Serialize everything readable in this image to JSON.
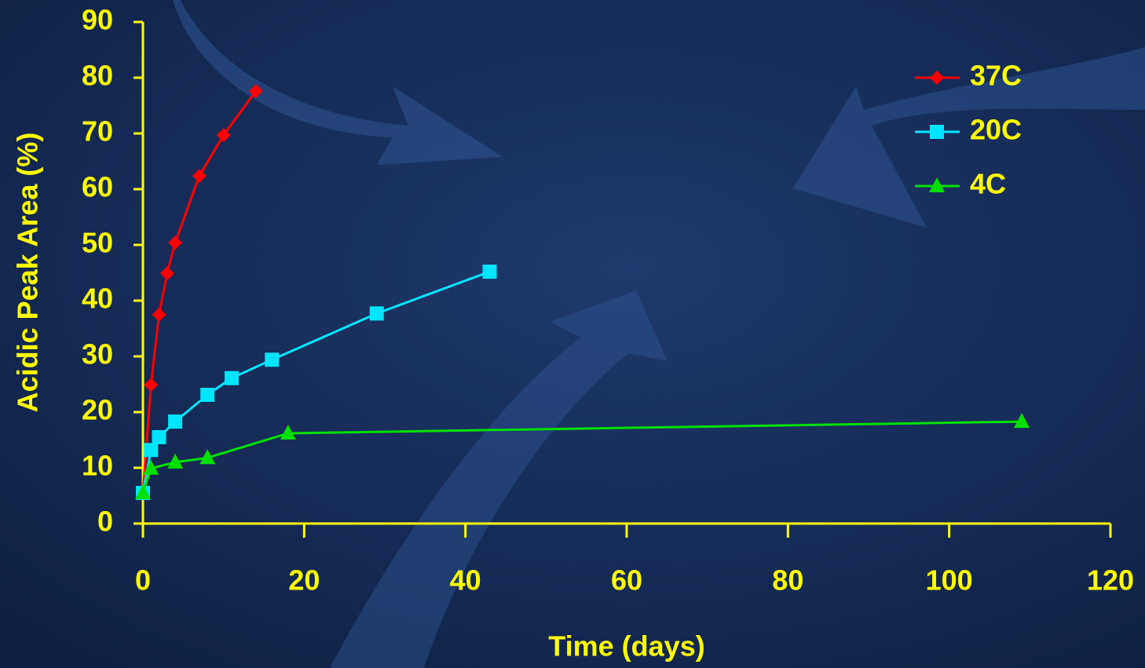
{
  "chart_data": {
    "type": "line",
    "x_label": "Time (days)",
    "y_label": "Acidic Peak Area (%)",
    "xlim": [
      0,
      120
    ],
    "xticks": [
      0,
      20,
      40,
      60,
      80,
      100,
      120
    ],
    "ylim": [
      0,
      90
    ],
    "yticks": [
      0,
      10,
      20,
      30,
      40,
      50,
      60,
      70,
      80,
      90
    ],
    "grid": false,
    "legend": "top-right",
    "series": [
      {
        "name": "37C",
        "color": "#ff0000",
        "marker": "diamond",
        "x": [
          0,
          1,
          2,
          3,
          4,
          7,
          10,
          14
        ],
        "values": [
          5.5,
          24.9,
          37.5,
          44.9,
          50.4,
          62.4,
          69.7,
          77.6
        ]
      },
      {
        "name": "20C",
        "color": "#00e5ff",
        "marker": "square",
        "x": [
          0,
          1,
          2,
          4,
          8,
          11,
          16,
          29,
          43
        ],
        "values": [
          5.5,
          13.2,
          15.5,
          18.3,
          23.1,
          26.1,
          29.4,
          37.7,
          45.2
        ]
      },
      {
        "name": "4C",
        "color": "#00e000",
        "marker": "triangle",
        "x": [
          0,
          1,
          4,
          8,
          18,
          109
        ],
        "values": [
          5.5,
          9.9,
          11.0,
          11.8,
          16.2,
          18.3
        ]
      }
    ]
  }
}
